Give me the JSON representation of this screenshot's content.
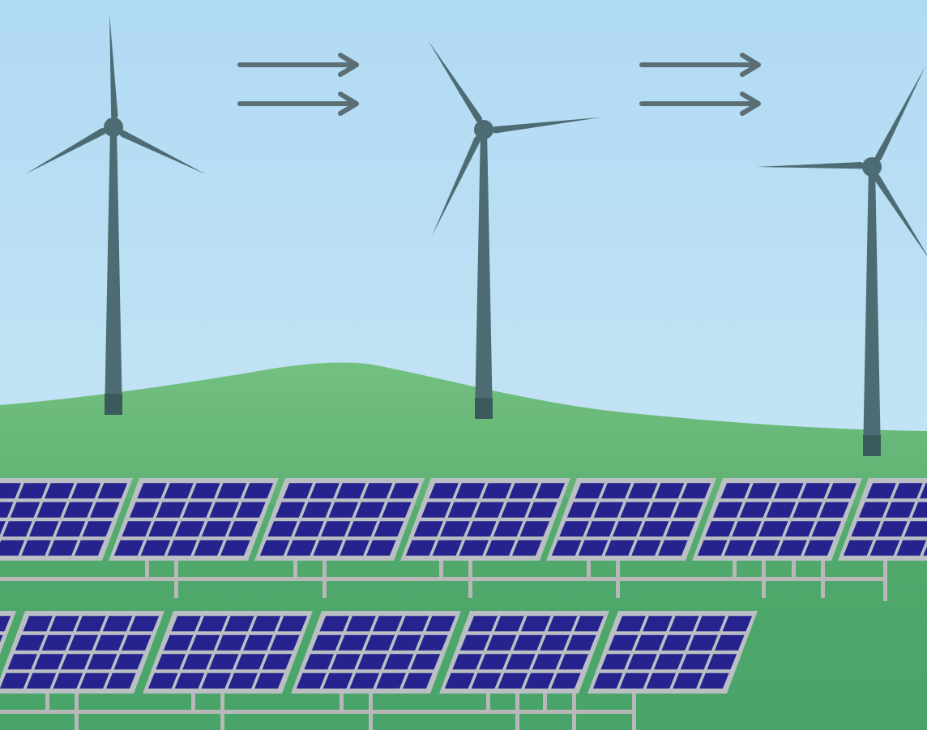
{
  "scene": {
    "description_alt": "",
    "colors": {
      "sky_top": "#b3dcf3",
      "sky_bottom": "#cde9f6",
      "grass_light": "#6fbf7e",
      "grass_dark": "#3f9e63",
      "turbine": "#4d6b73",
      "turbine_base": "#3a5a5c",
      "panel_cell": "#26238e",
      "panel_grid": "#c6ccd0",
      "panel_frame": "#b9bfc3",
      "rack": "#b8b8b8",
      "wind_arrow": "#5a6e74"
    },
    "icons": {
      "turbine": "wind-turbine-icon",
      "arrow": "wind-arrow-icon",
      "panel": "solar-panel-icon"
    },
    "counts_visible": {
      "wind_turbines": 3,
      "wind_arrow_groups": 2,
      "solar_rows": 2
    }
  }
}
